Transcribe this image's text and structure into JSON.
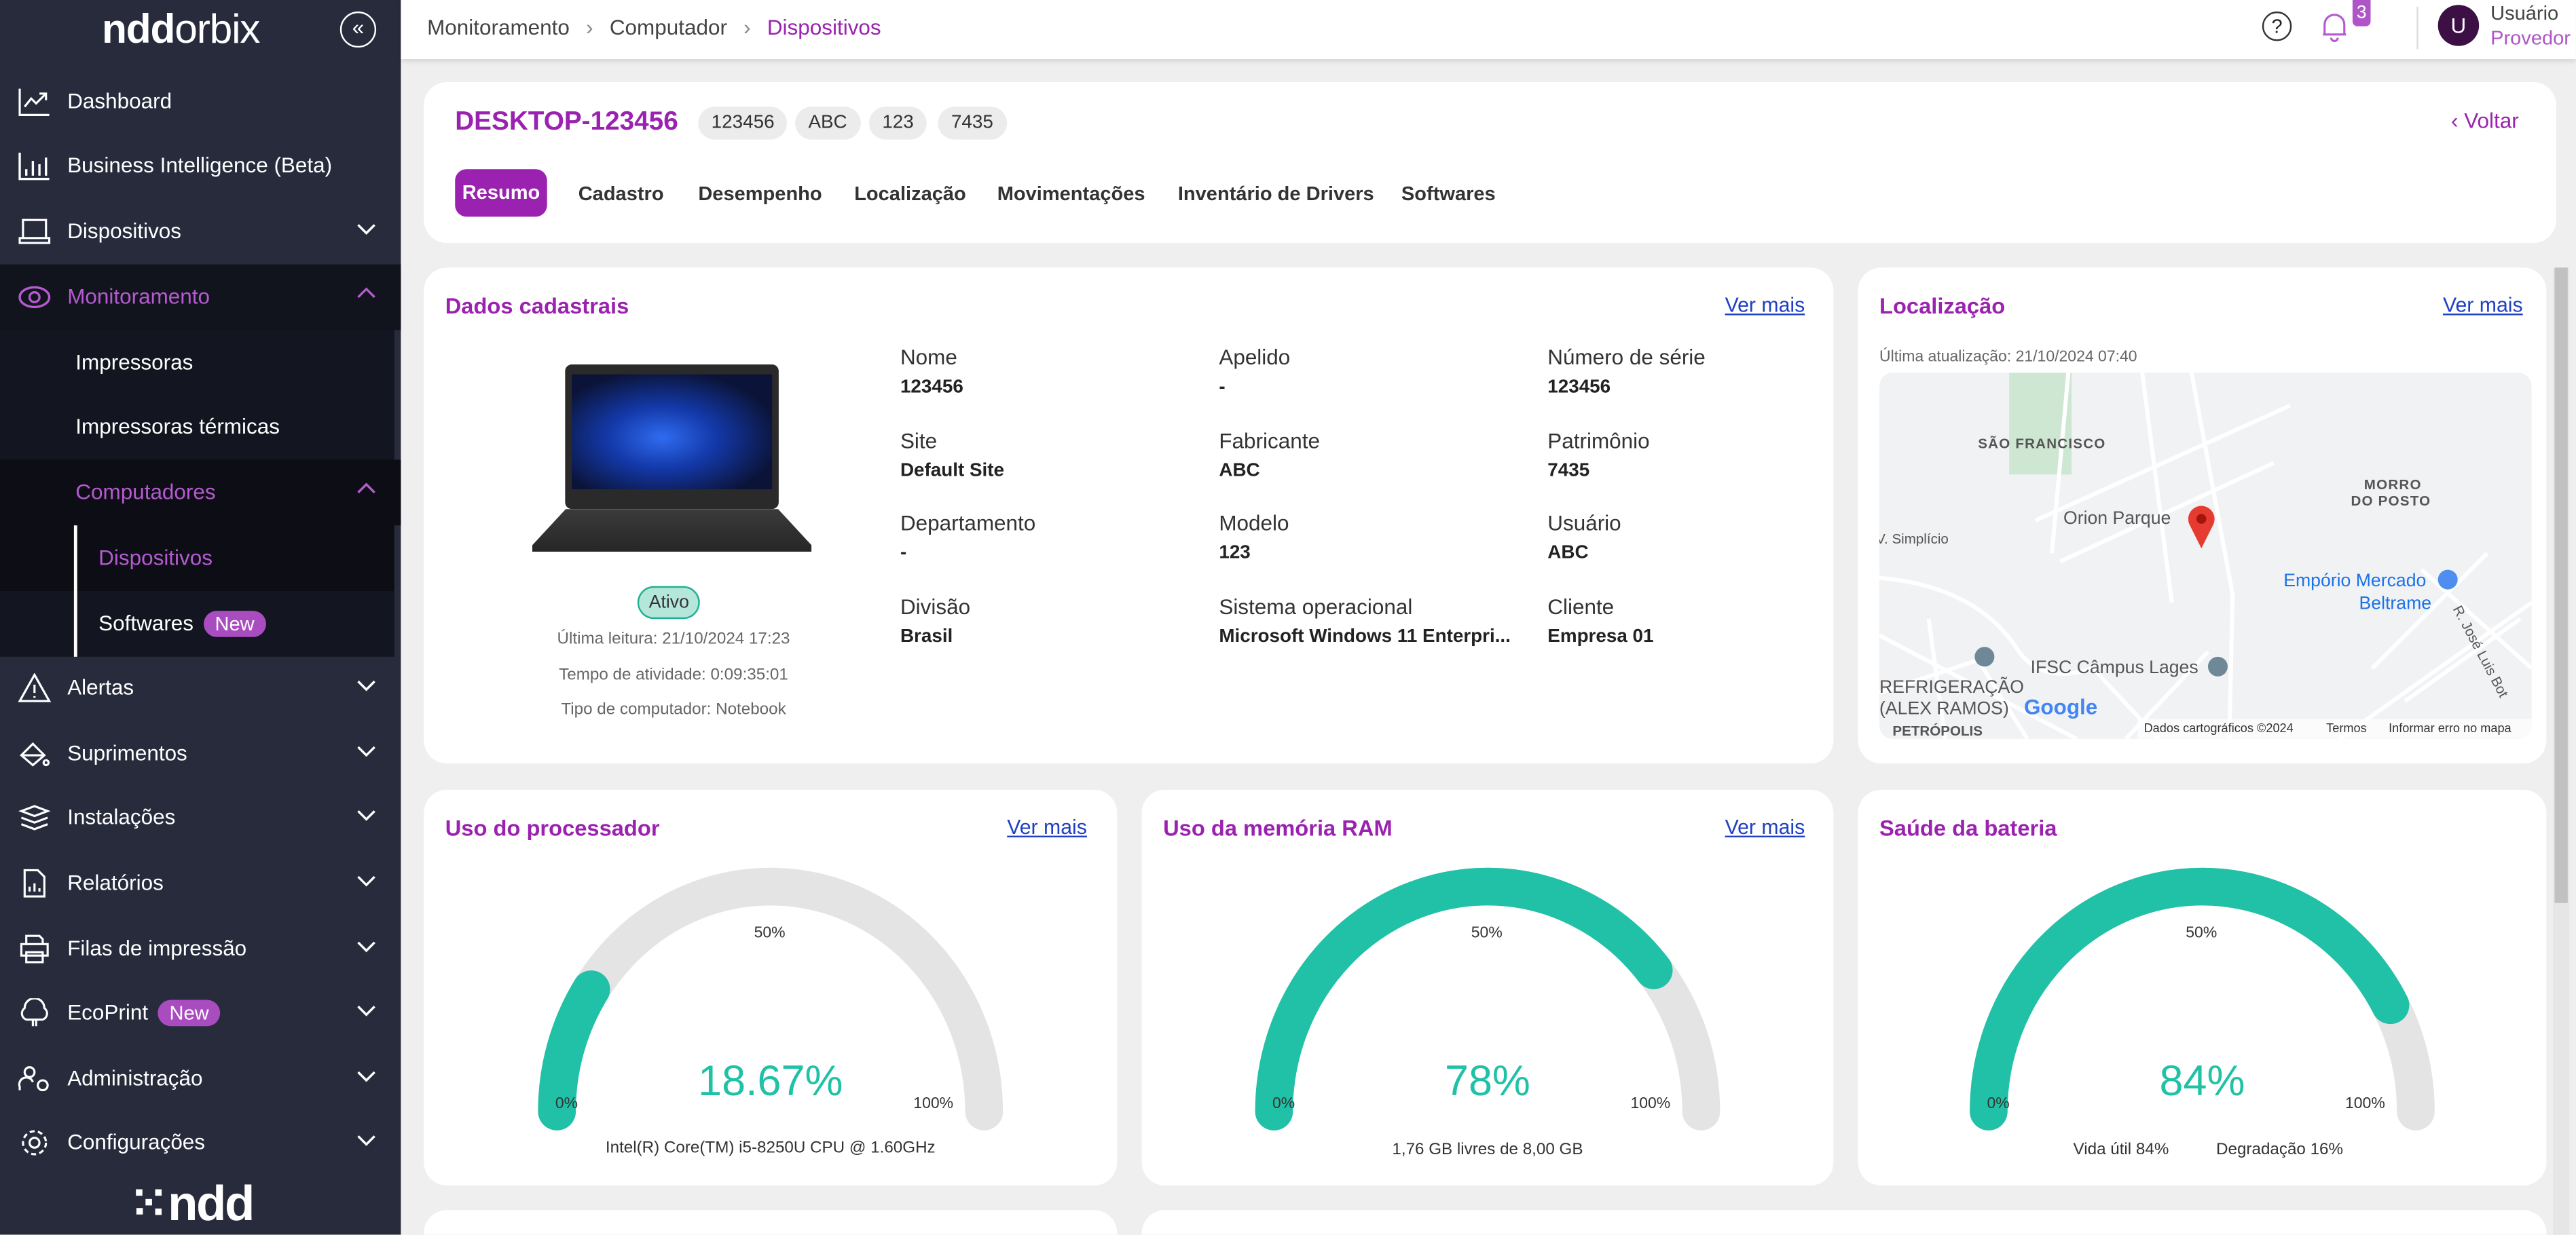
{
  "brand": {
    "logo_text": "nddorbix",
    "footer_logo": "ndd"
  },
  "sidebar": {
    "items": [
      {
        "label": "Dashboard",
        "icon": "chart-line-icon"
      },
      {
        "label": "Business Intelligence (Beta)",
        "icon": "bar-chart-icon"
      },
      {
        "label": "Dispositivos",
        "icon": "laptop-icon"
      },
      {
        "label": "Monitoramento",
        "icon": "eye-icon",
        "active": true
      },
      {
        "label": "Impressoras"
      },
      {
        "label": "Impressoras térmicas"
      },
      {
        "label": "Computadores",
        "active": true
      },
      {
        "label": "Dispositivos",
        "active": true
      },
      {
        "label": "Softwares",
        "badge": "New"
      },
      {
        "label": "Alertas",
        "icon": "warning-icon"
      },
      {
        "label": "Suprimentos",
        "icon": "paint-bucket-icon"
      },
      {
        "label": "Instalações",
        "icon": "layers-icon"
      },
      {
        "label": "Relatórios",
        "icon": "report-icon"
      },
      {
        "label": "Filas de impressão",
        "icon": "printer-icon"
      },
      {
        "label": "EcoPrint",
        "icon": "tree-icon",
        "badge": "New"
      },
      {
        "label": "Administração",
        "icon": "user-gear-icon"
      },
      {
        "label": "Configurações",
        "icon": "gear-icon"
      }
    ]
  },
  "topbar": {
    "breadcrumb": [
      "Monitoramento",
      "Computador",
      "Dispositivos"
    ],
    "notifications_count": "3",
    "user": {
      "initial": "U",
      "name": "Usuário",
      "role": "Provedor"
    }
  },
  "device": {
    "title": "DESKTOP-123456",
    "chips": [
      "123456",
      "ABC",
      "123",
      "7435"
    ],
    "back_label": "Voltar",
    "tabs": [
      "Resumo",
      "Cadastro",
      "Desempenho",
      "Localização",
      "Movimentações",
      "Inventário de Drivers",
      "Softwares"
    ],
    "active_tab": "Resumo"
  },
  "dados": {
    "title": "Dados cadastrais",
    "link": "Ver mais",
    "status": "Ativo",
    "ultima_leitura": "Última leitura: 21/10/2024 17:23",
    "tempo_atividade": "Tempo de atividade: 0:09:35:01",
    "tipo": "Tipo de computador: Notebook",
    "fields": [
      {
        "label": "Nome",
        "value": "123456"
      },
      {
        "label": "Apelido",
        "value": "-"
      },
      {
        "label": "Número de série",
        "value": "123456"
      },
      {
        "label": "Site",
        "value": "Default Site"
      },
      {
        "label": "Fabricante",
        "value": "ABC"
      },
      {
        "label": "Patrimônio",
        "value": "7435"
      },
      {
        "label": "Departamento",
        "value": "-"
      },
      {
        "label": "Modelo",
        "value": "123"
      },
      {
        "label": "Usuário",
        "value": "ABC"
      },
      {
        "label": "Divisão",
        "value": "Brasil"
      },
      {
        "label": "Sistema operacional",
        "value": "Microsoft Windows 11 Enterpri..."
      },
      {
        "label": "Cliente",
        "value": "Empresa 01"
      }
    ]
  },
  "localizacao": {
    "title": "Localização",
    "link": "Ver mais",
    "updated": "Última atualização: 21/10/2024 07:40",
    "map": {
      "labels": {
        "sao_francisco": "SÃO FRANCISCO",
        "morro1": "MORRO",
        "morro2": "DO POSTO",
        "orion": "Orion Parque",
        "simplicio": "V. Simplício",
        "emporio1": "Empório Mercado",
        "emporio2": "Beltrame",
        "ifsc": "IFSC Câmpus Lages",
        "refrig1": "REFRIGERAÇÃO",
        "refrig2": "(ALEX RAMOS)",
        "petropolis": "PETRÓPOLIS",
        "rua": "R. José Luis Bot"
      },
      "google": "Google",
      "attribution": "Dados cartográficos ©2024",
      "terms": "Termos",
      "report": "Informar erro no mapa"
    }
  },
  "gauges": [
    {
      "title": "Uso do processador",
      "link": "Ver mais",
      "value": 18.67,
      "display": "18.67%",
      "min_label": "0%",
      "mid_label": "50%",
      "max_label": "100%",
      "subtitle": "Intel(R) Core(TM) i5-8250U CPU @ 1.60GHz"
    },
    {
      "title": "Uso da memória RAM",
      "link": "Ver mais",
      "value": 78,
      "display": "78%",
      "min_label": "0%",
      "mid_label": "50%",
      "max_label": "100%",
      "subtitle": "1,76 GB livres de 8,00 GB"
    },
    {
      "title": "Saúde da bateria",
      "value": 84,
      "display": "84%",
      "min_label": "0%",
      "mid_label": "50%",
      "max_label": "100%",
      "sub_left": "Vida útil 84%",
      "sub_right": "Degradação 16%"
    }
  ],
  "colors": {
    "accent": "#9b22b0",
    "gauge_fill": "#20c1a6",
    "gauge_track": "#e4e4e4",
    "sidebar_bg": "#272b3c",
    "link": "#1f3fc4"
  }
}
